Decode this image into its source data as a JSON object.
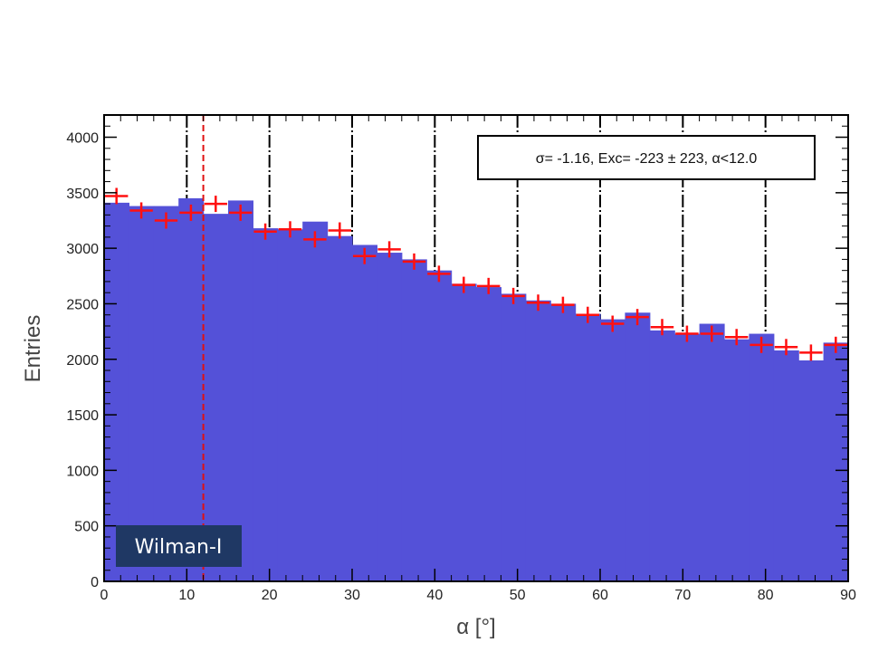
{
  "chart_data": {
    "type": "bar",
    "title": "",
    "xlabel": "α [°]",
    "ylabel": "Entries",
    "xlim": [
      0,
      90
    ],
    "ylim": [
      0,
      4200
    ],
    "xticks": [
      0,
      10,
      20,
      30,
      40,
      50,
      60,
      70,
      80,
      90
    ],
    "yticks": [
      0,
      500,
      1000,
      1500,
      2000,
      2500,
      3000,
      3500,
      4000
    ],
    "bin_edges": [
      0,
      3,
      6,
      9,
      12,
      15,
      18,
      21,
      24,
      27,
      30,
      33,
      36,
      39,
      42,
      45,
      48,
      51,
      54,
      57,
      60,
      63,
      66,
      69,
      72,
      75,
      78,
      81,
      84,
      87,
      90
    ],
    "series": [
      {
        "style": "filled-histogram",
        "values": [
          3410,
          3380,
          3380,
          3450,
          3310,
          3430,
          3180,
          3170,
          3240,
          3110,
          3030,
          2960,
          2900,
          2800,
          2680,
          2650,
          2590,
          2530,
          2500,
          2410,
          2360,
          2420,
          2260,
          2230,
          2320,
          2180,
          2230,
          2080,
          1990,
          2150
        ]
      },
      {
        "style": "crosses",
        "values": [
          3470,
          3340,
          3250,
          3320,
          3400,
          3320,
          3150,
          3170,
          3080,
          3160,
          2930,
          2990,
          2880,
          2770,
          2670,
          2660,
          2570,
          2510,
          2490,
          2400,
          2320,
          2380,
          2290,
          2230,
          2230,
          2200,
          2130,
          2110,
          2060,
          2130
        ]
      }
    ],
    "cut_line": 12.0,
    "vertical_lines": [
      10,
      20,
      30,
      40,
      50,
      60,
      70,
      80
    ],
    "stats_box": "σ= -1.16, Exc= -223 ± 223, α<12.0",
    "colors": {
      "fill": "#5451d8",
      "crosses": "#ff1010",
      "cut": "#e01010",
      "badge": "#1f3864"
    }
  },
  "badge": {
    "label": "Wilman-I"
  }
}
